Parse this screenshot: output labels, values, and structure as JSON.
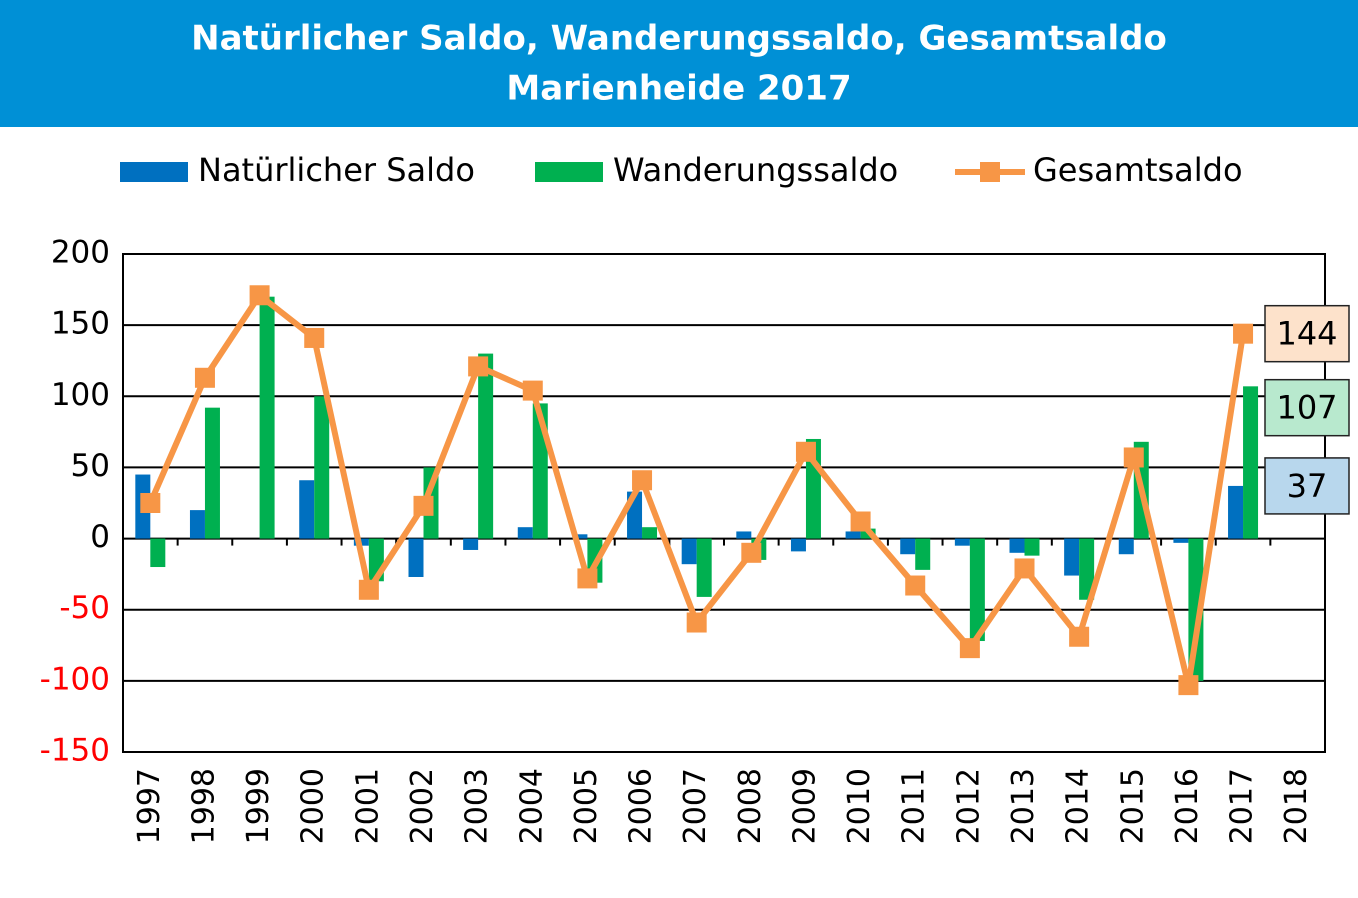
{
  "chart_data": {
    "type": "bar-line",
    "title": "Natürlicher Saldo, Wanderungssaldo, Gesamtsaldo",
    "subtitle": "Marienheide 2017",
    "categories": [
      "1997",
      "1998",
      "1999",
      "2000",
      "2001",
      "2002",
      "2003",
      "2004",
      "2005",
      "2006",
      "2007",
      "2008",
      "2009",
      "2010",
      "2011",
      "2012",
      "2013",
      "2014",
      "2015",
      "2016",
      "2017",
      "2018"
    ],
    "series": [
      {
        "name": "Natürlicher Saldo",
        "type": "bar",
        "color": "#0070c0",
        "values": [
          45,
          20,
          0,
          41,
          -5,
          -27,
          -8,
          8,
          3,
          33,
          -18,
          5,
          -9,
          5,
          -11,
          -5,
          -10,
          -26,
          -11,
          -3,
          37,
          null
        ]
      },
      {
        "name": "Wanderungssaldo",
        "type": "bar",
        "color": "#00b050",
        "values": [
          -20,
          92,
          170,
          100,
          -30,
          50,
          130,
          95,
          -31,
          8,
          -41,
          -15,
          70,
          7,
          -22,
          -72,
          -12,
          -43,
          68,
          -100,
          107,
          null
        ]
      },
      {
        "name": "Gesamtsaldo",
        "type": "line",
        "color": "#f79646",
        "values": [
          25,
          113,
          171,
          141,
          -36,
          23,
          121,
          104,
          -28,
          41,
          -59,
          -10,
          61,
          12,
          -33,
          -77,
          -21,
          -69,
          57,
          -103,
          144,
          null
        ]
      }
    ],
    "ylim": [
      -150,
      200
    ],
    "yticks": [
      -150,
      -100,
      -50,
      0,
      50,
      100,
      150,
      200
    ],
    "grid": true,
    "negative_tick_color": "#ff0000"
  }
}
